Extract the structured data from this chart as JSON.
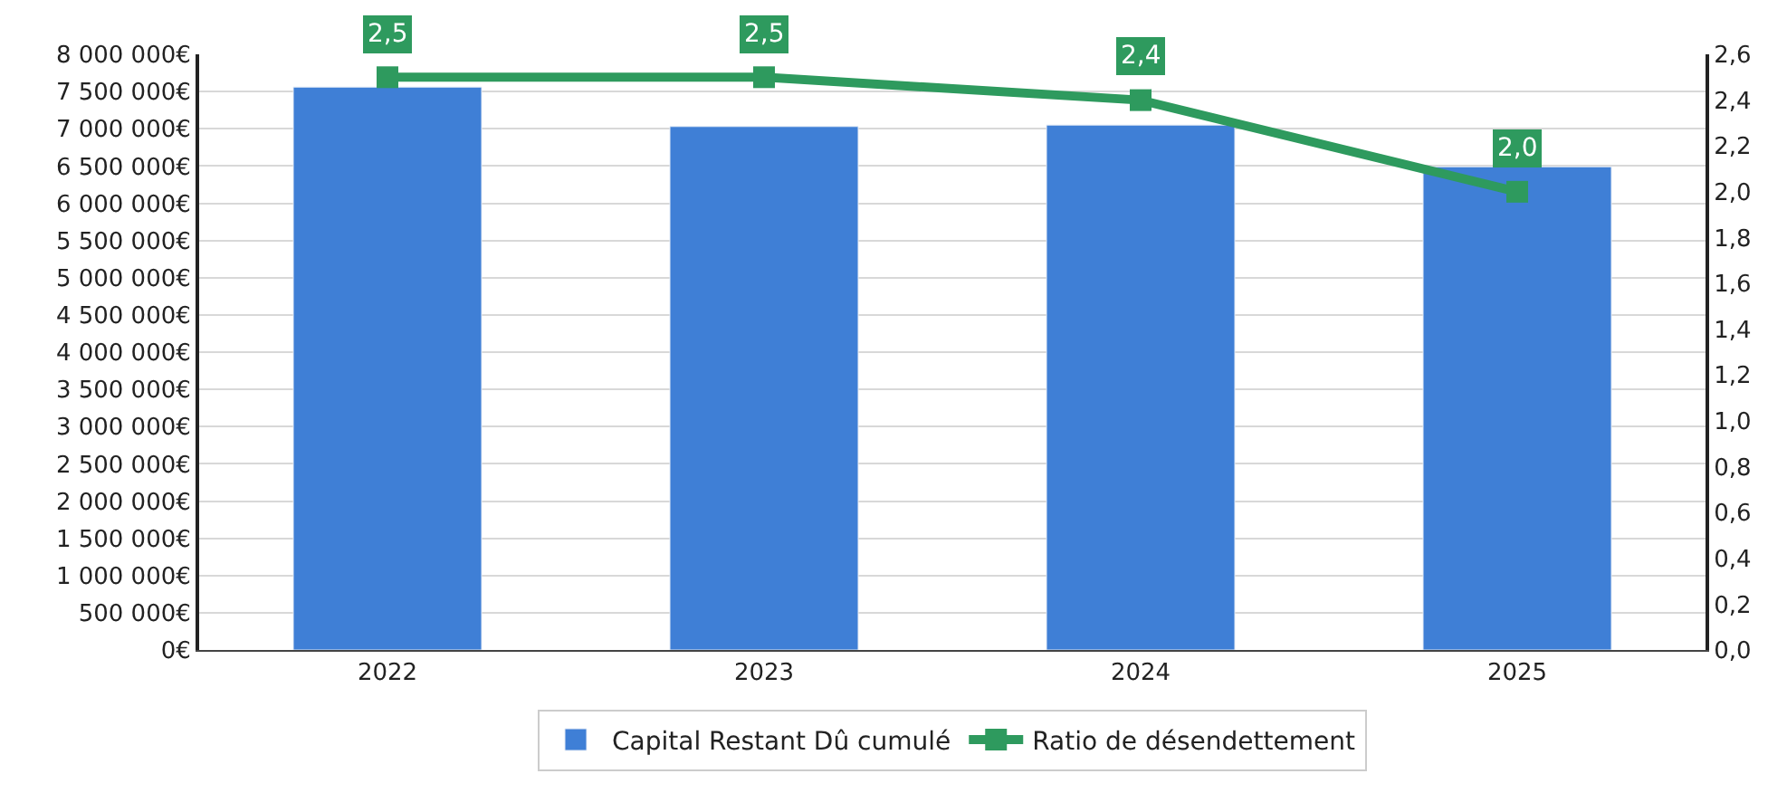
{
  "chart_data": {
    "type": "bar",
    "categories": [
      "2022",
      "2023",
      "2024",
      "2025"
    ],
    "series": [
      {
        "name": "Capital Restant Dû cumulé",
        "color": "#3f7fd6",
        "values": [
          7560000,
          7030000,
          7050000,
          6490000
        ]
      },
      {
        "name": "Ratio de désendettement",
        "type": "line",
        "axis": "y2",
        "color": "#2e9a5e",
        "values": [
          2.5,
          2.5,
          2.4,
          2.0
        ],
        "marker": "square",
        "data_labels": true,
        "value_labels": [
          "2,5",
          "2,5",
          "2,4",
          "2,0"
        ]
      }
    ],
    "ylim": [
      0,
      8000000
    ],
    "yticks": [
      {
        "value": 0,
        "label": "0€"
      },
      {
        "value": 500000,
        "label": "500 000€"
      },
      {
        "value": 1000000,
        "label": "1 000 000€"
      },
      {
        "value": 1500000,
        "label": "1 500 000€"
      },
      {
        "value": 2000000,
        "label": "2 000 000€"
      },
      {
        "value": 2500000,
        "label": "2 500 000€"
      },
      {
        "value": 3000000,
        "label": "3 000 000€"
      },
      {
        "value": 3500000,
        "label": "3 500 000€"
      },
      {
        "value": 4000000,
        "label": "4 000 000€"
      },
      {
        "value": 4500000,
        "label": "4 500 000€"
      },
      {
        "value": 5000000,
        "label": "5 000 000€"
      },
      {
        "value": 5500000,
        "label": "5 500 000€"
      },
      {
        "value": 6000000,
        "label": "6 000 000€"
      },
      {
        "value": 6500000,
        "label": "6 500 000€"
      },
      {
        "value": 7000000,
        "label": "7 000 000€"
      },
      {
        "value": 7500000,
        "label": "7 500 000€"
      },
      {
        "value": 8000000,
        "label": "8 000 000€"
      }
    ],
    "y2lim": [
      0,
      2.6
    ],
    "y2ticks": [
      {
        "value": 0,
        "label": "0,0"
      },
      {
        "value": 0.2,
        "label": "0,2"
      },
      {
        "value": 0.4,
        "label": "0,4"
      },
      {
        "value": 0.6,
        "label": "0,6"
      },
      {
        "value": 0.8,
        "label": "0,8"
      },
      {
        "value": 1.0,
        "label": "1,0"
      },
      {
        "value": 1.2,
        "label": "1,2"
      },
      {
        "value": 1.4,
        "label": "1,4"
      },
      {
        "value": 1.6,
        "label": "1,6"
      },
      {
        "value": 1.8,
        "label": "1,8"
      },
      {
        "value": 2.0,
        "label": "2,0"
      },
      {
        "value": 2.2,
        "label": "2,2"
      },
      {
        "value": 2.4,
        "label": "2,4"
      },
      {
        "value": 2.6,
        "label": "2,6"
      }
    ],
    "grid": "y",
    "legend": "bottom"
  }
}
